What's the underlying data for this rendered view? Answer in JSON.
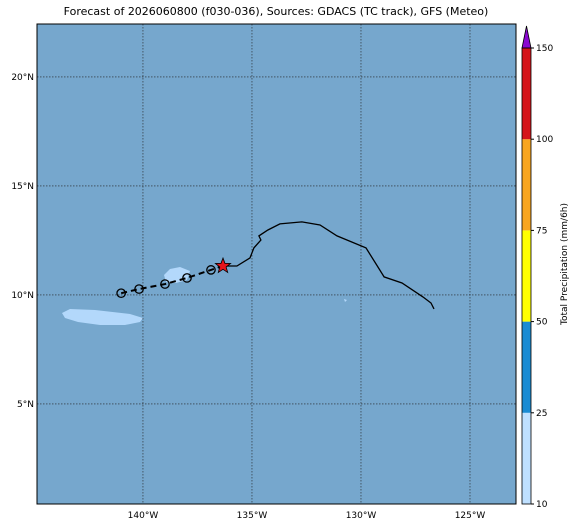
{
  "title": "Forecast of 2026060800 (f030-036), Sources: GDACS (TC track), GFS (Meteo)",
  "map": {
    "xlim": [
      -144.86,
      -122.89
    ],
    "ylim": [
      0.41,
      22.43
    ],
    "xticks": [
      {
        "value": -140,
        "label": "140°W"
      },
      {
        "value": -135,
        "label": "135°W"
      },
      {
        "value": -130,
        "label": "130°W"
      },
      {
        "value": -125,
        "label": "125°W"
      }
    ],
    "yticks": [
      {
        "value": 5,
        "label": "5°N"
      },
      {
        "value": 10,
        "label": "10°N"
      },
      {
        "value": 15,
        "label": "15°N"
      },
      {
        "value": 20,
        "label": "20°N"
      }
    ],
    "grid": true,
    "ocean_color": "#76a7cd",
    "track": {
      "lon": [
        -141.0,
        -140.18,
        -138.99,
        -137.98,
        -136.88
      ],
      "lat": [
        10.08,
        10.27,
        10.5,
        10.78,
        11.15
      ]
    },
    "current_position": {
      "lon": -136.33,
      "lat": 11.33,
      "color": "#e8141c"
    },
    "line": {
      "lon": [
        -136.33,
        -135.69,
        -135.09,
        -134.91,
        -134.59,
        -134.68,
        -134.27,
        -133.72,
        -132.71,
        -131.88,
        -131.1,
        -129.77,
        -128.94,
        -128.12,
        -127.16,
        -126.79,
        -126.65
      ],
      "lat": [
        11.33,
        11.33,
        11.7,
        12.16,
        12.52,
        12.71,
        12.98,
        13.26,
        13.35,
        13.21,
        12.71,
        12.16,
        10.83,
        10.55,
        9.91,
        9.63,
        9.36
      ]
    }
  },
  "colorbar": {
    "label": "Total Precipitation (mm/6h)",
    "levels": [
      10,
      25,
      50,
      75,
      100,
      150
    ],
    "colors": [
      "#bfe0ff",
      "#1a8bd3",
      "#ffff00",
      "#f8a51f",
      "#d5141a"
    ],
    "extend_color": "#8a08d0"
  }
}
